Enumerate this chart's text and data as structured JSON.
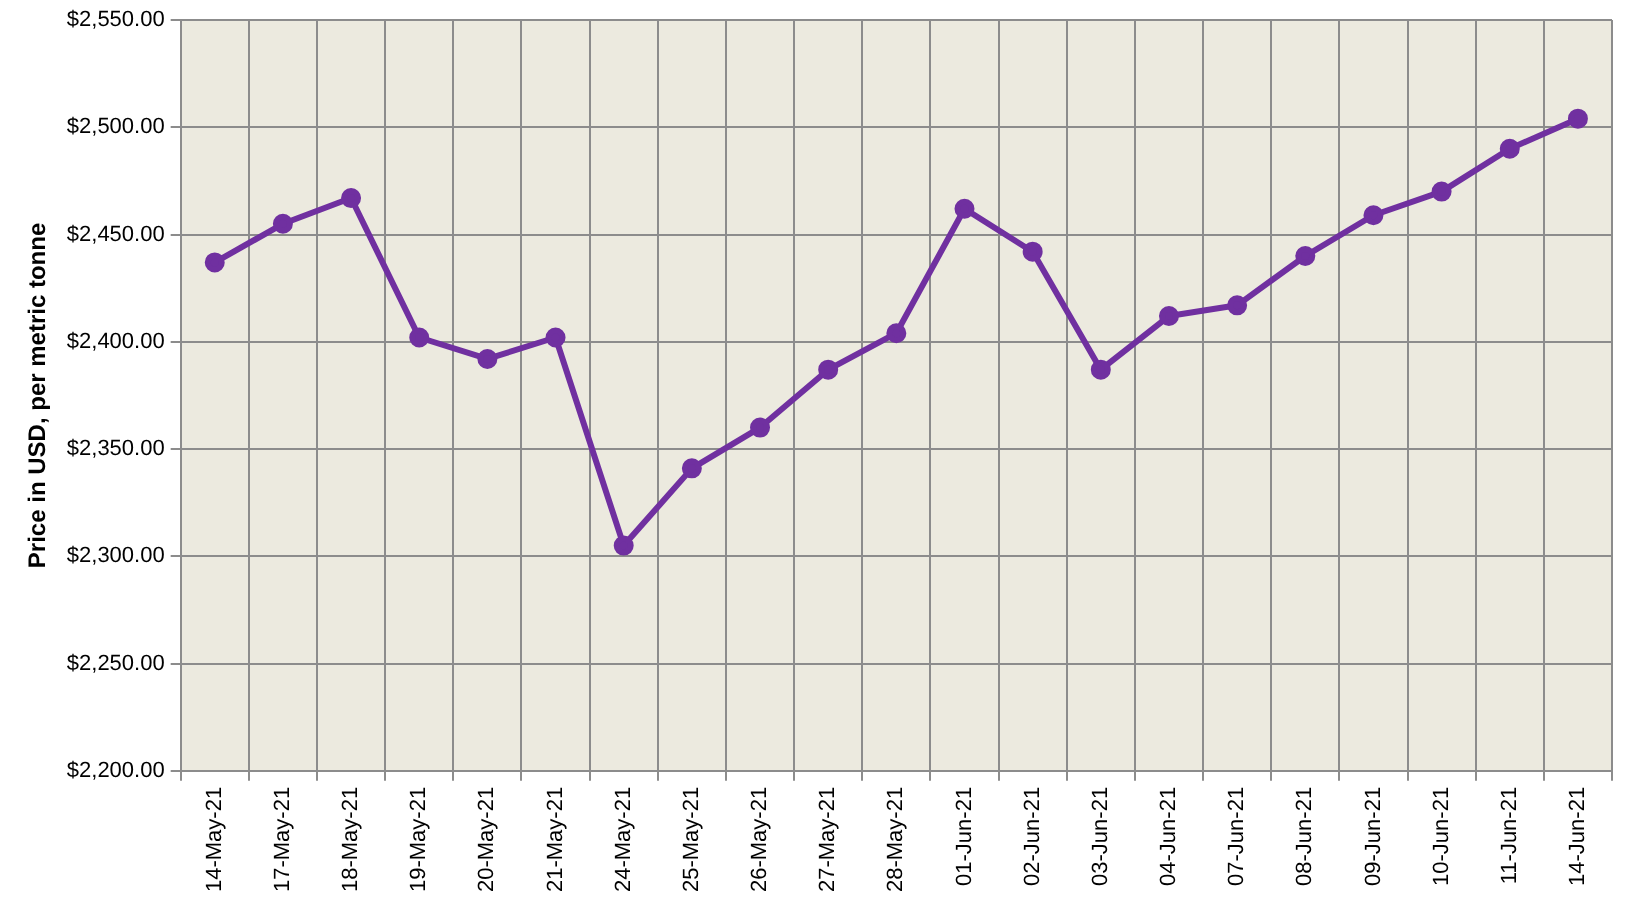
{
  "chart_data": {
    "type": "line",
    "ylabel": "Price in USD, per metric tonne",
    "categories": [
      "14-May-21",
      "17-May-21",
      "18-May-21",
      "19-May-21",
      "20-May-21",
      "21-May-21",
      "24-May-21",
      "25-May-21",
      "26-May-21",
      "27-May-21",
      "28-May-21",
      "01-Jun-21",
      "02-Jun-21",
      "03-Jun-21",
      "04-Jun-21",
      "07-Jun-21",
      "08-Jun-21",
      "09-Jun-21",
      "10-Jun-21",
      "11-Jun-21",
      "14-Jun-21"
    ],
    "series": [
      {
        "color": "#7030a0",
        "values": [
          2437,
          2455,
          2467,
          2402,
          2392,
          2402,
          2305,
          2341,
          2360,
          2387,
          2404,
          2462,
          2442,
          2387,
          2412,
          2417,
          2440,
          2459,
          2470,
          2490,
          2504
        ]
      }
    ],
    "ylim": [
      2200,
      2550
    ],
    "yticks": [
      {
        "value": 2200,
        "label": "$2,200.00"
      },
      {
        "value": 2250,
        "label": "$2,250.00"
      },
      {
        "value": 2300,
        "label": "$2,300.00"
      },
      {
        "value": 2350,
        "label": "$2,350.00"
      },
      {
        "value": 2400,
        "label": "$2,400.00"
      },
      {
        "value": 2450,
        "label": "$2,450.00"
      },
      {
        "value": 2500,
        "label": "$2,500.00"
      },
      {
        "value": 2550,
        "label": "$2,550.00"
      }
    ],
    "grid": true,
    "legend": false,
    "marker": "circle",
    "line_style": "solid"
  }
}
